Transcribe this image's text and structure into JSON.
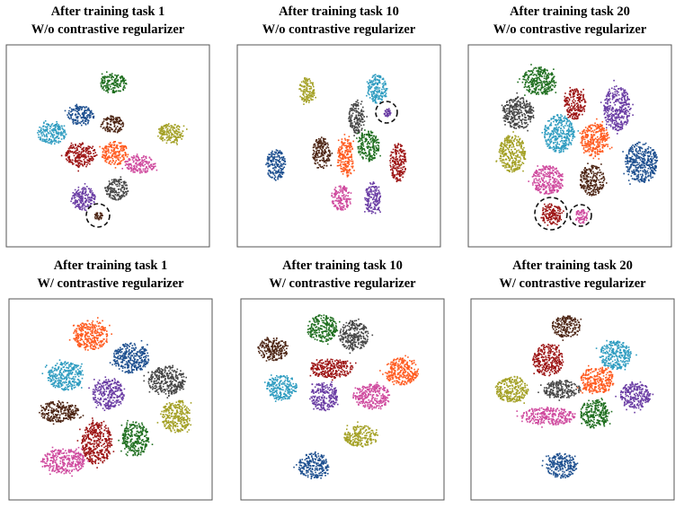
{
  "panels": [
    {
      "title": "After training task 1",
      "subtitle": "W/o contrastive regularizer"
    },
    {
      "title": "After training task 10",
      "subtitle": "W/o contrastive regularizer"
    },
    {
      "title": "After training task 20",
      "subtitle": "W/o contrastive regularizer"
    },
    {
      "title": "After training task 1",
      "subtitle": "W/ contrastive regularizer"
    },
    {
      "title": "After training task 10",
      "subtitle": "W/ contrastive regularizer"
    },
    {
      "title": "After training task 20",
      "subtitle": "W/ contrastive regularizer"
    }
  ]
}
